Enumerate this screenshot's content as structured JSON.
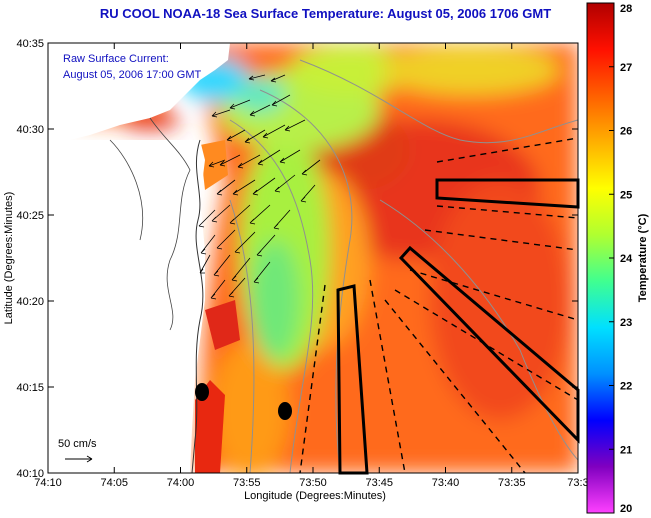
{
  "title": "RU COOL  NOAA-18  Sea Surface Temperature:  August 05, 2006 1706 GMT",
  "annotation": {
    "line1": "Raw Surface Current:",
    "line2": "August 05, 2006 17:00 GMT"
  },
  "scale_label": "50 cm/s",
  "x_axis": {
    "label": "Longitude (Degrees:Minutes)",
    "ticks": [
      "74:10",
      "74:05",
      "74:00",
      "73:55",
      "73:50",
      "73:45",
      "73:40",
      "73:35",
      "73:3"
    ]
  },
  "y_axis": {
    "label": "Latitude (Degrees:Minutes)",
    "ticks": [
      "40:35",
      "40:30",
      "40:25",
      "40:20",
      "40:15",
      "40:10"
    ]
  },
  "colorbar": {
    "label": "Temperature (°C)",
    "ticks": [
      "28",
      "27",
      "26",
      "25",
      "24",
      "23",
      "22",
      "21",
      "20"
    ],
    "stops": [
      "#ff40ff",
      "#8000c0",
      "#0000ff",
      "#0090ff",
      "#00e0ff",
      "#40ff90",
      "#b0ff30",
      "#ffff00",
      "#ffb000",
      "#ff6000",
      "#ff1000",
      "#b00000"
    ]
  },
  "colors": {
    "land": "#ffffff",
    "title": "#1010c0",
    "sst_warm": "#ff5a1a",
    "sst_core": "#e52a10",
    "sst_cool": "#c8f040",
    "sst_cold": "#30d8ff"
  }
}
